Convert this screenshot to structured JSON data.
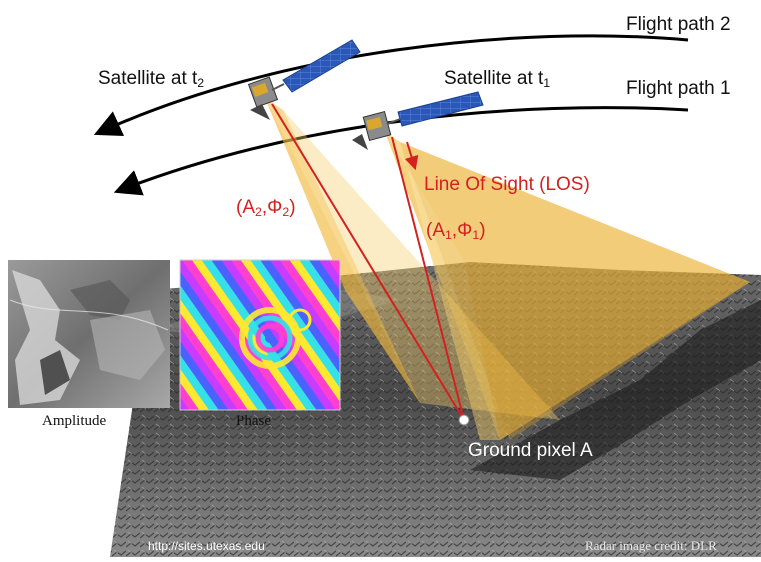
{
  "labels": {
    "flight_path_2": "Flight path 2",
    "flight_path_1": "Flight path 1",
    "satellite_t2_main": "Satellite at t",
    "satellite_t2_sub": "2",
    "satellite_t1_main": "Satellite at t",
    "satellite_t1_sub": "1",
    "los": "Line Of Sight (LOS)",
    "a2_open": "(A",
    "a2_sub": "2",
    "a2_mid": ",Φ",
    "a2_close": ")",
    "a1_open": "(A",
    "a1_sub": "1",
    "a1_mid": ",Φ",
    "a1_close": ")",
    "amplitude": "Amplitude",
    "phase": "Phase",
    "ground_pixel": "Ground pixel A",
    "source_url": "http://sites.utexas.edu",
    "credit": "Radar image credit: DLR"
  },
  "colors": {
    "los_red": "#d42020",
    "beam_gold": "#f2b93b",
    "panel_blue": "#2a58b8"
  }
}
